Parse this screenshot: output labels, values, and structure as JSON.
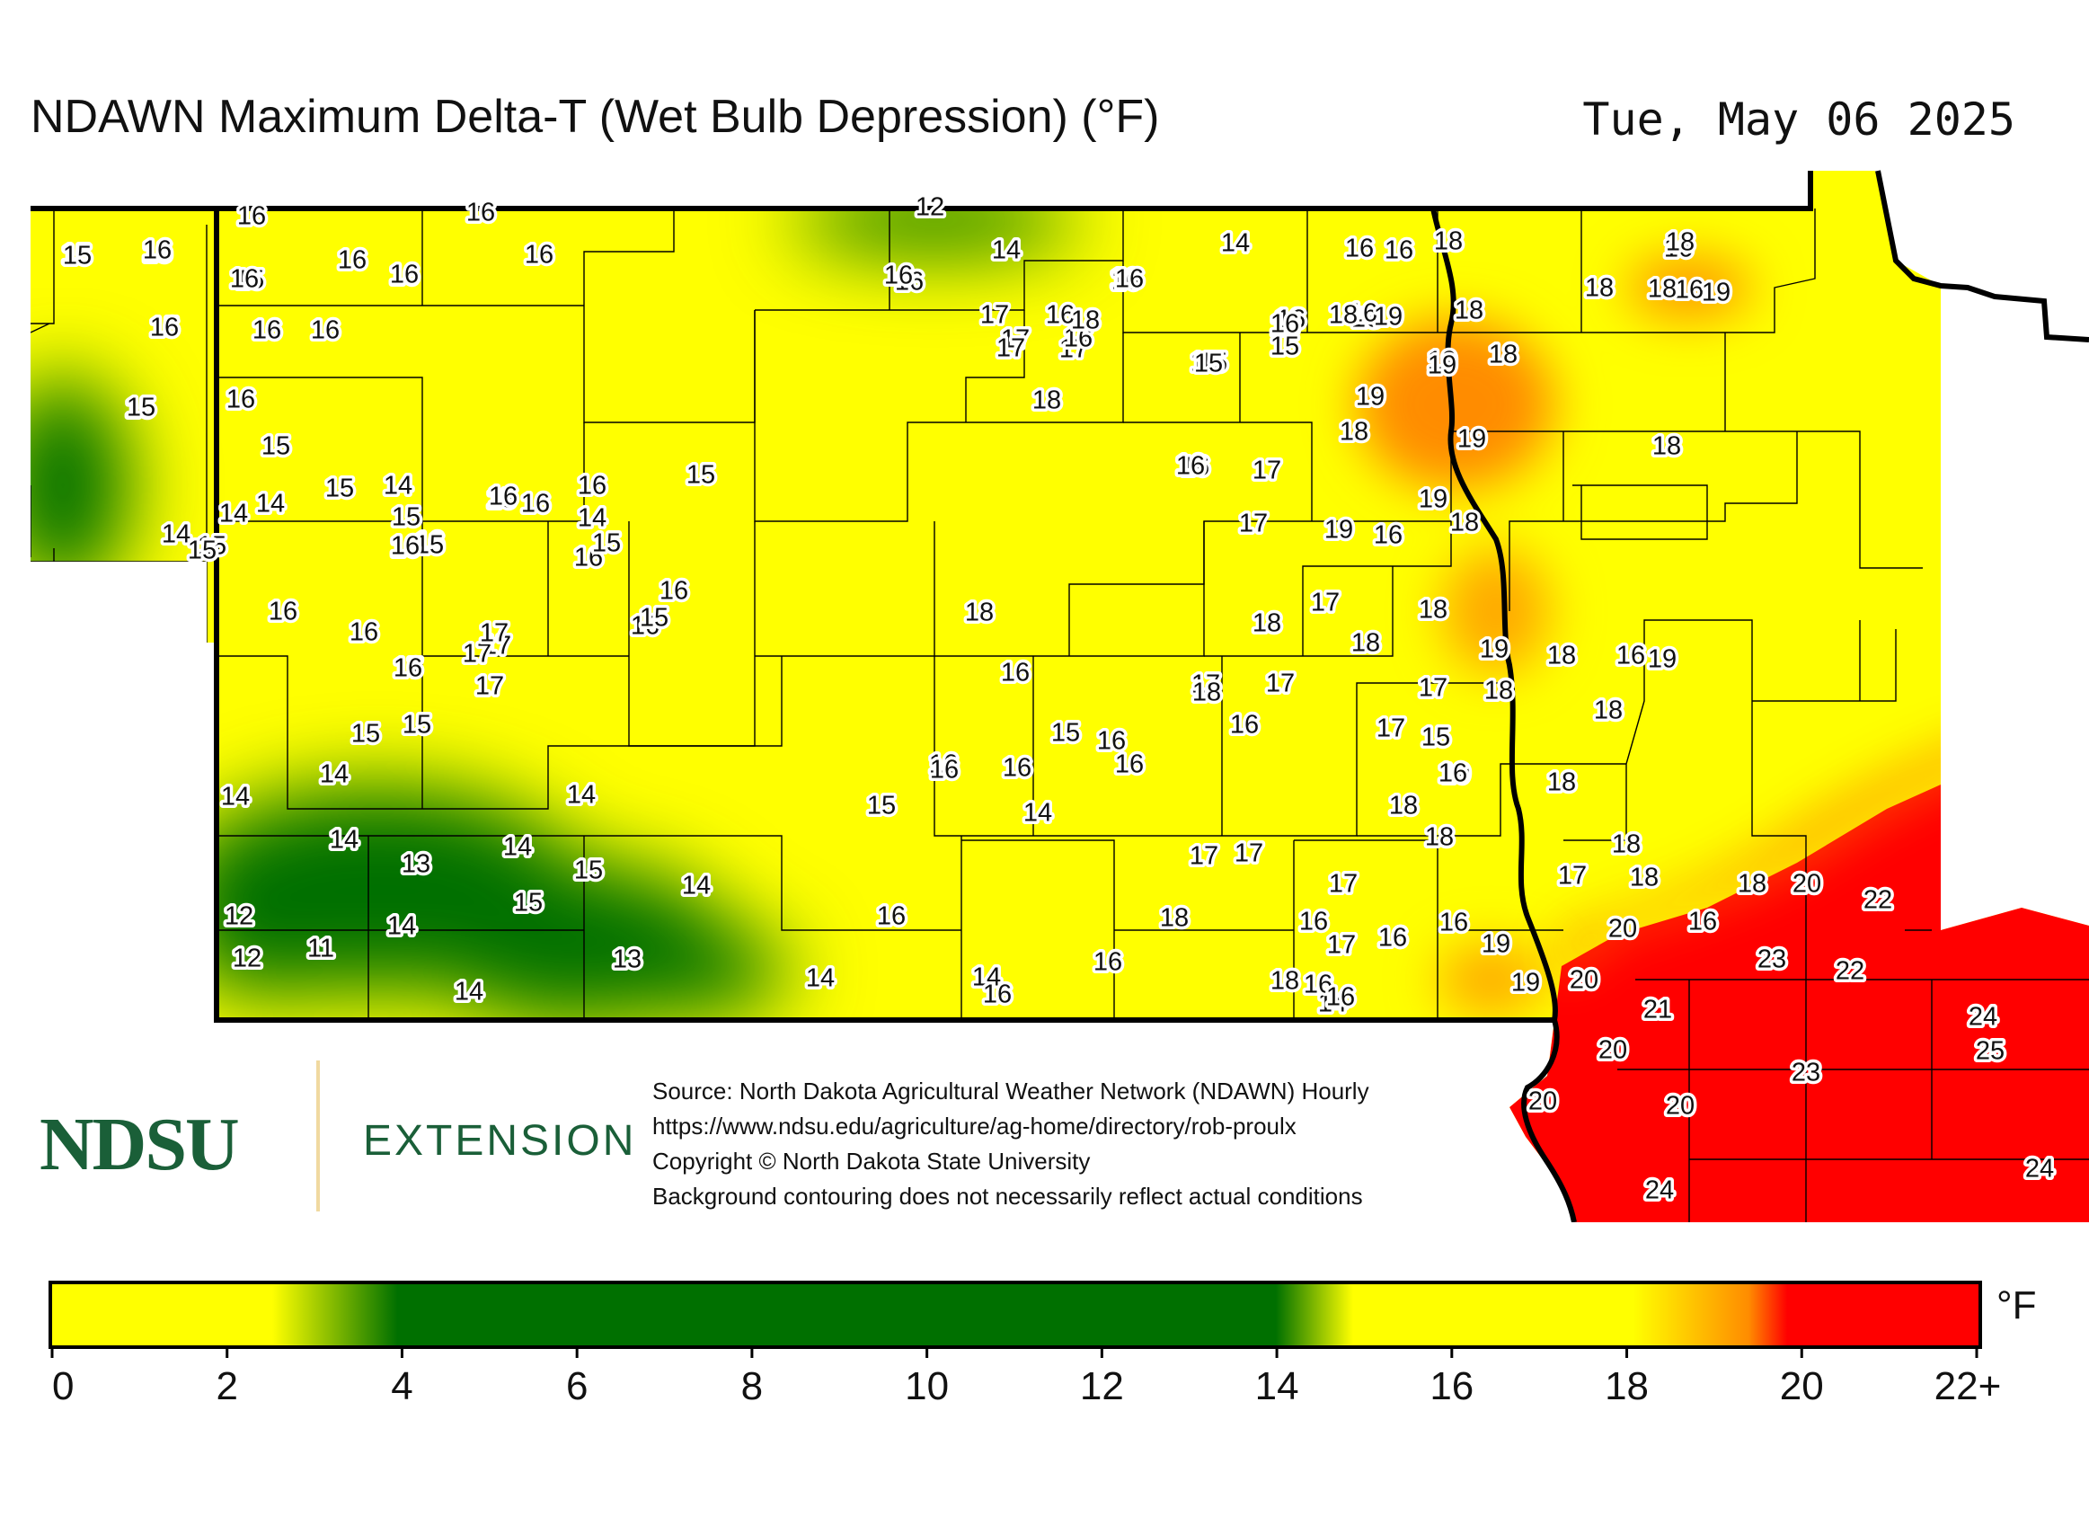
{
  "title": "NDAWN Maximum Delta-T (Wet Bulb Depression) (°F)",
  "date": "Tue, May 06 2025",
  "source_lines": [
    "Source: North Dakota Agricultural Weather Network (NDAWN) Hourly",
    "https://www.ndsu.edu/agriculture/ag-home/directory/rob-proulx",
    "Copyright © North Dakota State University",
    "Background contouring does not necessarily reflect actual conditions"
  ],
  "logo": {
    "name": "NDSU",
    "sub": "EXTENSION"
  },
  "colorbar": {
    "unit": "°F",
    "ticks": [
      "0",
      "2",
      "4",
      "6",
      "8",
      "10",
      "12",
      "14",
      "16",
      "18",
      "20",
      "22+"
    ],
    "colors": {
      "yellow": "#ffff00",
      "green": "#007000",
      "orange": "#ff8c00",
      "red": "#ff0000"
    }
  },
  "station_values": {
    "group_1": [
      "16",
      "16",
      "12",
      "15",
      "15",
      "15",
      "16",
      "16",
      "14",
      "14",
      "16",
      "16",
      "16",
      "16",
      "16",
      "15",
      "16",
      "17",
      "16",
      "16",
      "15",
      "16",
      "16",
      "16",
      "16",
      "16",
      "16",
      "16",
      "17",
      "17",
      "15",
      "15",
      "16",
      "16",
      "16",
      "16",
      "16",
      "15",
      "16",
      "17",
      "18",
      "17",
      "18",
      "15"
    ],
    "group_2": [
      "18",
      "18",
      "19",
      "16",
      "18",
      "19",
      "18",
      "19",
      "18",
      "18",
      "16",
      "15",
      "19",
      "19",
      "19",
      "18",
      "18",
      "16",
      "17",
      "19",
      "16",
      "19",
      "18",
      "17",
      "16",
      "18",
      "18",
      "17",
      "18",
      "18",
      "19",
      "18",
      "16",
      "18",
      "18",
      "19",
      "18",
      "17",
      "15",
      "17",
      "19",
      "18",
      "16",
      "17",
      "16",
      "18",
      "17",
      "18",
      "18",
      "17",
      "18",
      "18",
      "18",
      "20",
      "22",
      "16",
      "20",
      "19",
      "23",
      "22",
      "19",
      "20",
      "21",
      "24",
      "20",
      "25",
      "23",
      "20",
      "20",
      "24",
      "24"
    ],
    "group_3": [
      "15",
      "16",
      "15",
      "15",
      "16",
      "14",
      "16",
      "14",
      "15",
      "16",
      "15",
      "14",
      "15",
      "14",
      "15",
      "15",
      "16",
      "15",
      "16",
      "16",
      "16",
      "16",
      "16",
      "15",
      "15",
      "17",
      "17",
      "16",
      "15",
      "17",
      "15",
      "17",
      "16",
      "16",
      "17",
      "16",
      "15",
      "16",
      "15",
      "14",
      "14",
      "14",
      "14",
      "14",
      "13",
      "14",
      "15",
      "12",
      "12",
      "11",
      "14",
      "14",
      "13",
      "15",
      "14",
      "14",
      "14",
      "16",
      "16",
      "15",
      "16",
      "15",
      "16",
      "16",
      "14",
      "16",
      "16",
      "17",
      "18",
      "16",
      "16",
      "16",
      "16",
      "16",
      "17",
      "18",
      "17",
      "18",
      "16",
      "14",
      "16",
      "17",
      "17",
      "16",
      "16",
      "18",
      "17",
      "16"
    ]
  }
}
